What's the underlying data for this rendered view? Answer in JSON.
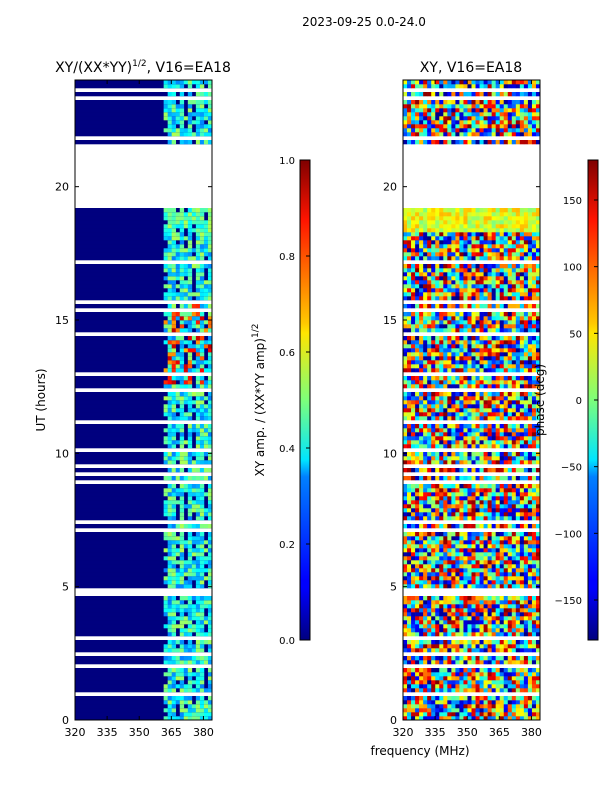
{
  "suptitle": "2023-09-25 0.0-24.0",
  "chart_data": [
    {
      "type": "heatmap",
      "title_main": "XY/(XX*YY)",
      "title_sup": "1/2",
      "title_tail": ", V16=EA18",
      "xlabel": "",
      "ylabel": "UT (hours)",
      "xlim": [
        320,
        384
      ],
      "ylim": [
        0,
        24
      ],
      "xticks": [
        320,
        335,
        350,
        365,
        380
      ],
      "yticks": [
        0,
        5,
        10,
        15,
        20
      ],
      "colorbar": {
        "label_main": "XY amp. / (XX*YY amp)",
        "label_sup": "1/2",
        "range": [
          0.0,
          1.0
        ],
        "ticks": [
          "0.0",
          "0.2",
          "0.4",
          "0.6",
          "0.8",
          "1.0"
        ]
      }
    },
    {
      "type": "heatmap",
      "title": "XY, V16=EA18",
      "xlabel": "frequency (MHz)",
      "ylabel": "",
      "xlim": [
        320,
        384
      ],
      "ylim": [
        0,
        24
      ],
      "xticks": [
        320,
        335,
        350,
        365,
        380
      ],
      "yticks": [
        0,
        5,
        10,
        15,
        20
      ],
      "colorbar": {
        "label": "phase (deg)",
        "range": [
          -180,
          180
        ],
        "ticks": [
          "150",
          "100",
          "50",
          "0",
          "−50",
          "−100",
          "−150"
        ]
      }
    }
  ],
  "colors": {
    "jet_low": "#00007f",
    "jet_high": "#7f0000"
  }
}
